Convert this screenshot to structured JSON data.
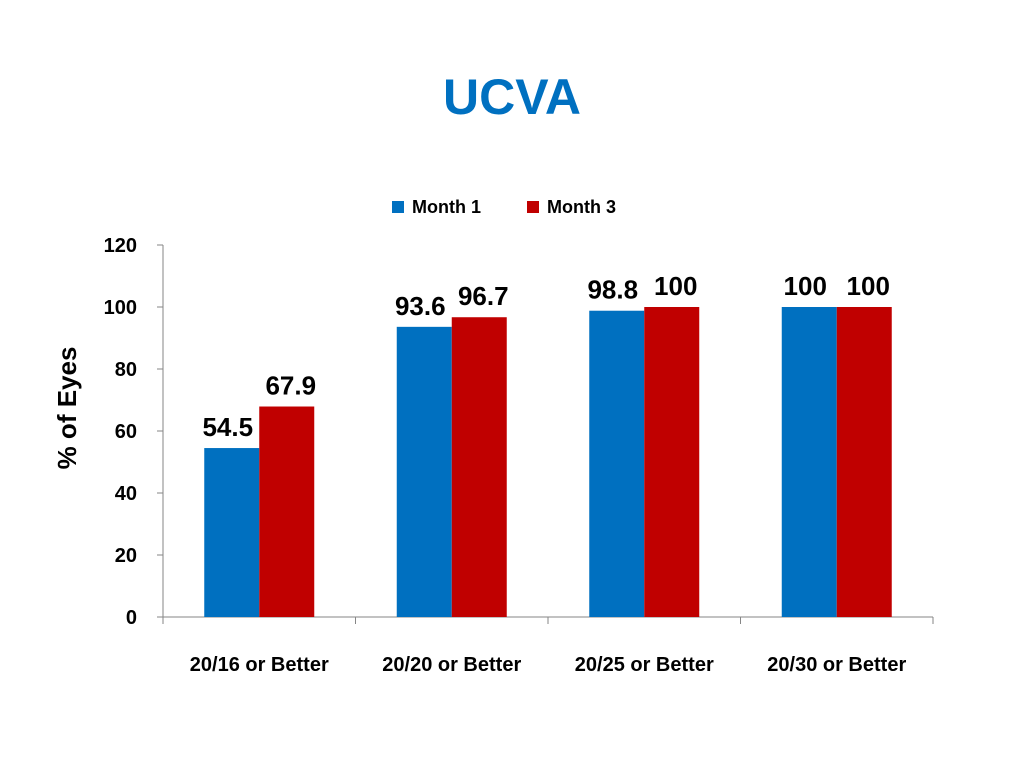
{
  "chart_data": {
    "type": "bar",
    "title": "UCVA",
    "xlabel": "",
    "ylabel": "% of Eyes",
    "ylim": [
      0,
      120
    ],
    "yticks": [
      0,
      20,
      40,
      60,
      80,
      100,
      120
    ],
    "categories": [
      "20/16 or Better",
      "20/20 or Better",
      "20/25 or Better",
      "20/30 or Better"
    ],
    "series": [
      {
        "name": "Month 1",
        "color": "#0070C0",
        "values": [
          54.5,
          93.6,
          98.8,
          100
        ],
        "labels": [
          "54.5",
          "93.6",
          "98.8",
          "100"
        ]
      },
      {
        "name": "Month 3",
        "color": "#C00000",
        "values": [
          67.9,
          96.7,
          100,
          100
        ],
        "labels": [
          "67.9",
          "96.7",
          "100",
          "100"
        ]
      }
    ],
    "legend": "top",
    "grid": false,
    "title_color": "#0070C0"
  }
}
